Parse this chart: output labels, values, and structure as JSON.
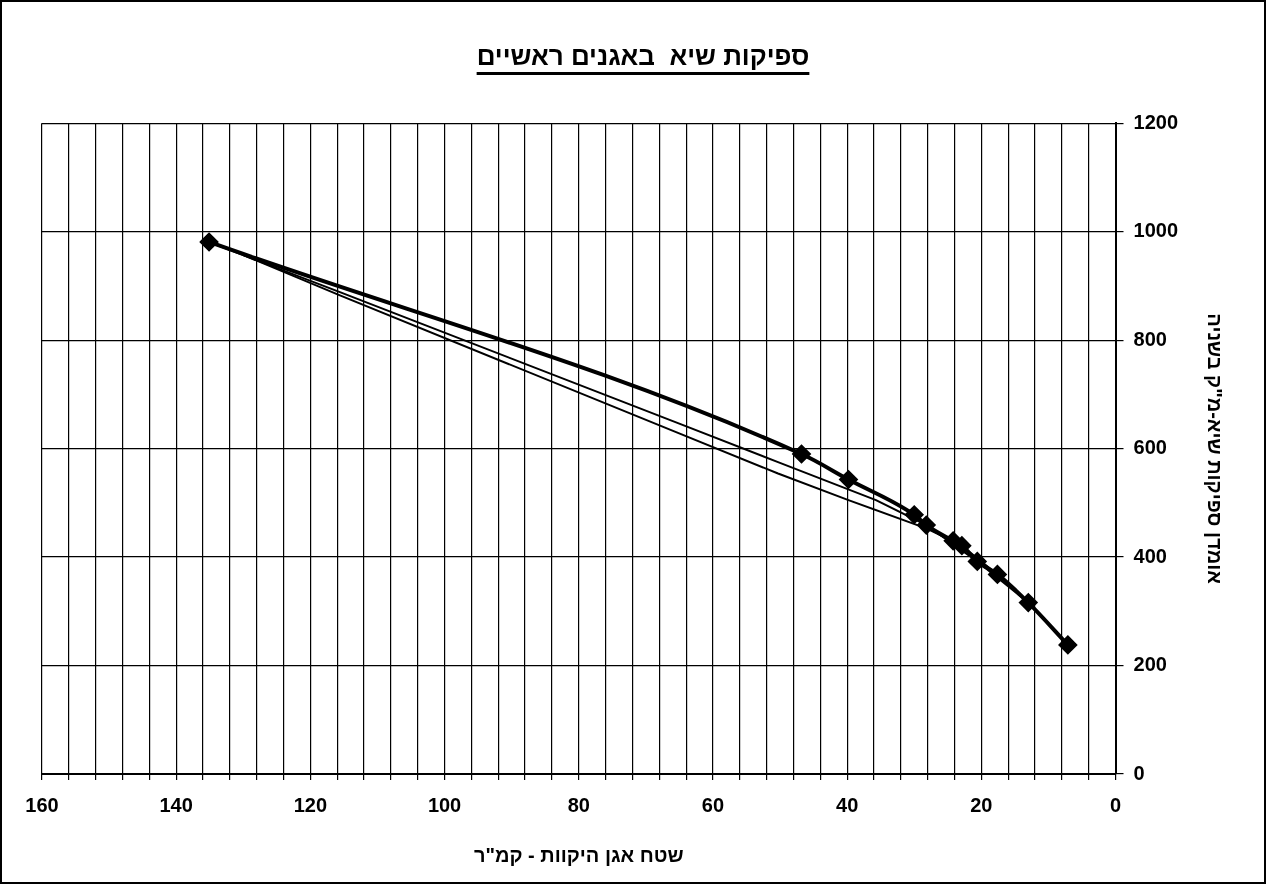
{
  "chart_data": {
    "type": "line",
    "title": "ספיקות שיא  באגנים ראשיים",
    "xlabel": "שטח אגן היקוות - קמ\"ר",
    "ylabel": "אומדן ספיקות שיא-מ\"ק בשניה",
    "xlim": [
      160,
      0
    ],
    "ylim": [
      0,
      1200
    ],
    "xticks": [
      160,
      {
        "value": 156,
        "label": null
      },
      {
        "value": 152,
        "label": null
      },
      {
        "value": 148,
        "label": null
      },
      {
        "value": 144,
        "label": null
      },
      140,
      {
        "value": 136,
        "label": null
      },
      {
        "value": 132,
        "label": null
      },
      {
        "value": 128,
        "label": null
      },
      {
        "value": 124,
        "label": null
      },
      120,
      {
        "value": 116,
        "label": null
      },
      {
        "value": 112,
        "label": null
      },
      {
        "value": 108,
        "label": null
      },
      {
        "value": 104,
        "label": null
      },
      100,
      {
        "value": 96,
        "label": null
      },
      {
        "value": 92,
        "label": null
      },
      {
        "value": 88,
        "label": null
      },
      {
        "value": 84,
        "label": null
      },
      80,
      {
        "value": 76,
        "label": null
      },
      {
        "value": 72,
        "label": null
      },
      {
        "value": 68,
        "label": null
      },
      {
        "value": 64,
        "label": null
      },
      60,
      {
        "value": 56,
        "label": null
      },
      {
        "value": 52,
        "label": null
      },
      {
        "value": 48,
        "label": null
      },
      {
        "value": 44,
        "label": null
      },
      40,
      {
        "value": 36,
        "label": null
      },
      {
        "value": 32,
        "label": null
      },
      {
        "value": 28,
        "label": null
      },
      {
        "value": 24,
        "label": null
      },
      20,
      {
        "value": 16,
        "label": null
      },
      {
        "value": 12,
        "label": null
      },
      {
        "value": 8,
        "label": null
      },
      {
        "value": 4,
        "label": null
      },
      0
    ],
    "yticks": [
      0,
      200,
      400,
      600,
      800,
      1000,
      1200
    ],
    "grid": true,
    "legend": false,
    "series": [
      {
        "color": "#000000",
        "marker": "diamond",
        "x": [
          135.1,
          46.8,
          39.8,
          30.0,
          28.2,
          24.2,
          22.9,
          20.6,
          17.6,
          13.0,
          7.1
        ],
        "values": [
          981,
          590,
          543,
          478,
          459,
          430,
          421,
          392,
          368,
          316,
          238
        ]
      },
      {
        "color": "#000000",
        "marker": "none",
        "x": [
          135.1,
          115.5,
          65.4,
          50.3,
          35.7,
          28.2,
          20.6,
          13.0,
          7.1
        ],
        "values": [
          981,
          888,
          648,
          575,
          505,
          459,
          392,
          316,
          238
        ]
      },
      {
        "color": "#000000",
        "marker": "none",
        "x": [
          130.0,
          115.5,
          65.4,
          50.3,
          39.8,
          28.2,
          22.9,
          17.6,
          13.0
        ],
        "values": [
          957,
          882,
          630,
          554,
          505,
          453,
          421,
          368,
          316
        ]
      }
    ]
  }
}
